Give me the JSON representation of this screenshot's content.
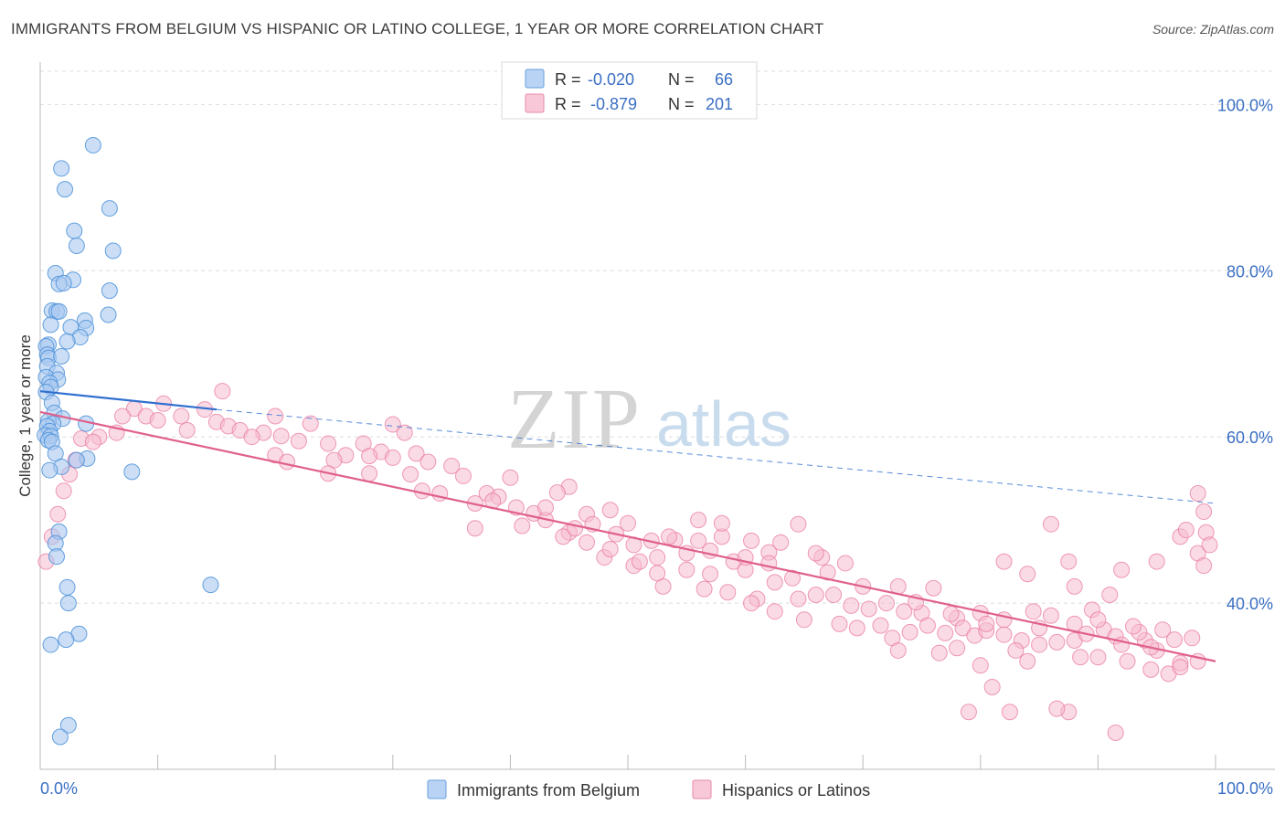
{
  "title": "IMMIGRANTS FROM BELGIUM VS HISPANIC OR LATINO COLLEGE, 1 YEAR OR MORE CORRELATION CHART",
  "source": "Source: ZipAtlas.com",
  "watermark": {
    "zip": "ZIP",
    "atlas": "atlas"
  },
  "colors": {
    "blue": "#4a90d9",
    "blue_fill": "#a8c8f0",
    "blue_line": "#2f6fcf",
    "pink": "#e97aa0",
    "pink_fill": "#f6bcd0",
    "pink_line": "#e0608c",
    "tick_label": "#3a6fc4",
    "grid": "#dddddd"
  },
  "legend": {
    "rows": [
      {
        "r_label": "R =",
        "r_value": "-0.020",
        "n_label": "N =",
        "n_value": "66"
      },
      {
        "r_label": "R =",
        "r_value": "-0.879",
        "n_label": "N =",
        "n_value": "201"
      }
    ]
  },
  "chart_data": {
    "type": "scatter",
    "ylabel": "College, 1 year or more",
    "xlabel": "",
    "xlim": [
      0,
      100
    ],
    "ylim": [
      20,
      104
    ],
    "x_tick_labels": [
      "0.0%",
      "100.0%"
    ],
    "y_ticks": [
      40,
      60,
      80,
      100
    ],
    "y_tick_labels": [
      "40.0%",
      "60.0%",
      "80.0%",
      "100.0%"
    ],
    "grid": true,
    "legend_position": "top-center",
    "series": [
      {
        "name": "Immigrants from Belgium",
        "r": -0.02,
        "n": 66,
        "trend": {
          "x0": 0,
          "y0": 65.5,
          "x1": 15,
          "y1": 63.3,
          "dash_x1": 100,
          "dash_y1": 52
        },
        "points": [
          [
            4.5,
            95.1
          ],
          [
            1.8,
            92.3
          ],
          [
            2.1,
            89.8
          ],
          [
            5.9,
            87.5
          ],
          [
            2.9,
            84.8
          ],
          [
            3.1,
            83.0
          ],
          [
            6.2,
            82.4
          ],
          [
            1.3,
            79.7
          ],
          [
            2.8,
            78.9
          ],
          [
            1.6,
            78.4
          ],
          [
            2.0,
            78.5
          ],
          [
            5.9,
            77.6
          ],
          [
            1.0,
            75.2
          ],
          [
            1.4,
            75.1
          ],
          [
            1.6,
            75.1
          ],
          [
            5.8,
            74.7
          ],
          [
            3.8,
            74.0
          ],
          [
            0.9,
            73.5
          ],
          [
            2.6,
            73.2
          ],
          [
            3.9,
            73.1
          ],
          [
            3.4,
            72.0
          ],
          [
            0.7,
            71.1
          ],
          [
            2.3,
            71.5
          ],
          [
            0.5,
            70.9
          ],
          [
            0.6,
            69.9
          ],
          [
            0.7,
            69.5
          ],
          [
            1.8,
            69.7
          ],
          [
            0.6,
            68.5
          ],
          [
            1.4,
            67.7
          ],
          [
            0.5,
            67.2
          ],
          [
            1.5,
            66.9
          ],
          [
            0.8,
            66.5
          ],
          [
            0.9,
            66.0
          ],
          [
            0.5,
            65.4
          ],
          [
            1.0,
            64.1
          ],
          [
            1.2,
            62.9
          ],
          [
            1.9,
            62.2
          ],
          [
            0.7,
            61.9
          ],
          [
            1.1,
            61.6
          ],
          [
            3.9,
            61.6
          ],
          [
            0.6,
            61.3
          ],
          [
            0.8,
            60.7
          ],
          [
            0.4,
            60.2
          ],
          [
            0.9,
            60.1
          ],
          [
            0.7,
            59.6
          ],
          [
            1.0,
            59.4
          ],
          [
            1.3,
            58.0
          ],
          [
            4.0,
            57.4
          ],
          [
            3.1,
            57.2
          ],
          [
            1.8,
            56.4
          ],
          [
            0.8,
            56.0
          ],
          [
            7.8,
            55.8
          ],
          [
            1.6,
            48.6
          ],
          [
            1.3,
            47.2
          ],
          [
            1.4,
            45.6
          ],
          [
            14.5,
            42.2
          ],
          [
            2.3,
            41.9
          ],
          [
            2.4,
            40.0
          ],
          [
            3.3,
            36.3
          ],
          [
            2.2,
            35.6
          ],
          [
            0.9,
            35.0
          ],
          [
            2.4,
            25.3
          ],
          [
            1.7,
            23.9
          ]
        ]
      },
      {
        "name": "Hispanics or Latinos",
        "r": -0.879,
        "n": 201,
        "trend": {
          "x0": 0,
          "y0": 63.0,
          "x1": 100,
          "y1": 33.0
        },
        "points": [
          [
            15.5,
            65.5
          ],
          [
            10.5,
            64.0
          ],
          [
            8.0,
            63.4
          ],
          [
            14.0,
            63.3
          ],
          [
            7.0,
            62.5
          ],
          [
            9.0,
            62.5
          ],
          [
            10.0,
            62.0
          ],
          [
            12.0,
            62.5
          ],
          [
            15.0,
            61.8
          ],
          [
            16.0,
            61.3
          ],
          [
            20.0,
            62.5
          ],
          [
            23.0,
            61.6
          ],
          [
            30.0,
            61.5
          ],
          [
            12.5,
            60.8
          ],
          [
            17.0,
            60.8
          ],
          [
            19.0,
            60.5
          ],
          [
            20.5,
            60.1
          ],
          [
            18.0,
            60.0
          ],
          [
            3.5,
            59.8
          ],
          [
            5.0,
            60.0
          ],
          [
            6.5,
            60.5
          ],
          [
            4.5,
            59.4
          ],
          [
            22.0,
            59.5
          ],
          [
            24.5,
            59.2
          ],
          [
            27.5,
            59.2
          ],
          [
            31.0,
            60.5
          ],
          [
            29.0,
            58.2
          ],
          [
            26.0,
            57.8
          ],
          [
            28.0,
            57.7
          ],
          [
            30.0,
            57.5
          ],
          [
            32.0,
            58.0
          ],
          [
            3.0,
            57.2
          ],
          [
            20.0,
            57.8
          ],
          [
            21.0,
            57.0
          ],
          [
            25.0,
            57.2
          ],
          [
            33.0,
            57.0
          ],
          [
            35.0,
            56.5
          ],
          [
            24.5,
            55.6
          ],
          [
            28.0,
            55.6
          ],
          [
            31.5,
            55.5
          ],
          [
            2.5,
            55.5
          ],
          [
            36.0,
            55.3
          ],
          [
            40.0,
            55.1
          ],
          [
            32.5,
            53.5
          ],
          [
            34.0,
            53.2
          ],
          [
            38.0,
            53.2
          ],
          [
            39.0,
            52.8
          ],
          [
            45.0,
            54.0
          ],
          [
            44.0,
            53.3
          ],
          [
            37.0,
            52.0
          ],
          [
            38.5,
            52.3
          ],
          [
            40.5,
            51.5
          ],
          [
            42.0,
            50.8
          ],
          [
            46.5,
            50.7
          ],
          [
            48.5,
            51.2
          ],
          [
            43.0,
            50.0
          ],
          [
            47.0,
            49.5
          ],
          [
            50.0,
            49.6
          ],
          [
            2.0,
            53.5
          ],
          [
            1.5,
            50.7
          ],
          [
            1.0,
            48.0
          ],
          [
            0.5,
            45.0
          ],
          [
            37.0,
            49.0
          ],
          [
            41.0,
            49.3
          ],
          [
            45.0,
            48.5
          ],
          [
            49.0,
            48.3
          ],
          [
            52.0,
            47.5
          ],
          [
            56.0,
            47.5
          ],
          [
            58.0,
            48.0
          ],
          [
            55.0,
            46.0
          ],
          [
            54.0,
            47.6
          ],
          [
            57.0,
            46.3
          ],
          [
            52.5,
            45.5
          ],
          [
            59.0,
            45.0
          ],
          [
            63.0,
            47.3
          ],
          [
            62.0,
            46.1
          ],
          [
            60.0,
            44.0
          ],
          [
            64.0,
            43.0
          ],
          [
            53.0,
            42.0
          ],
          [
            56.5,
            41.7
          ],
          [
            58.5,
            41.3
          ],
          [
            61.0,
            40.5
          ],
          [
            64.5,
            40.5
          ],
          [
            60.5,
            40.0
          ],
          [
            66.0,
            41.0
          ],
          [
            67.5,
            41.0
          ],
          [
            70.0,
            42.0
          ],
          [
            73.0,
            42.0
          ],
          [
            76.0,
            41.8
          ],
          [
            70.5,
            39.3
          ],
          [
            73.5,
            39.0
          ],
          [
            75.0,
            38.8
          ],
          [
            78.0,
            38.2
          ],
          [
            62.5,
            39.0
          ],
          [
            65.0,
            38.0
          ],
          [
            68.0,
            37.5
          ],
          [
            69.5,
            37.0
          ],
          [
            71.5,
            37.3
          ],
          [
            72.5,
            35.8
          ],
          [
            74.0,
            36.5
          ],
          [
            75.5,
            37.3
          ],
          [
            77.0,
            36.4
          ],
          [
            78.5,
            37.0
          ],
          [
            79.5,
            36.1
          ],
          [
            80.5,
            36.7
          ],
          [
            82.0,
            36.2
          ],
          [
            83.5,
            35.5
          ],
          [
            85.0,
            35.0
          ],
          [
            86.5,
            35.3
          ],
          [
            88.0,
            35.5
          ],
          [
            89.0,
            36.3
          ],
          [
            90.5,
            36.8
          ],
          [
            91.5,
            36.0
          ],
          [
            92.0,
            35.0
          ],
          [
            94.0,
            35.5
          ],
          [
            95.0,
            34.3
          ],
          [
            96.5,
            35.6
          ],
          [
            73.0,
            34.3
          ],
          [
            76.5,
            34.0
          ],
          [
            78.0,
            34.6
          ],
          [
            84.0,
            33.0
          ],
          [
            88.5,
            33.5
          ],
          [
            90.0,
            33.5
          ],
          [
            92.5,
            33.0
          ],
          [
            94.5,
            32.0
          ],
          [
            96.0,
            31.5
          ],
          [
            97.0,
            32.8
          ],
          [
            98.0,
            35.8
          ],
          [
            95.5,
            36.8
          ],
          [
            93.5,
            36.5
          ],
          [
            86.0,
            38.5
          ],
          [
            84.5,
            39.0
          ],
          [
            82.0,
            38.0
          ],
          [
            80.0,
            38.8
          ],
          [
            89.5,
            39.2
          ],
          [
            91.0,
            41.0
          ],
          [
            88.0,
            42.0
          ],
          [
            84.0,
            43.5
          ],
          [
            82.0,
            45.0
          ],
          [
            86.0,
            49.5
          ],
          [
            87.5,
            45.0
          ],
          [
            92.0,
            44.0
          ],
          [
            95.0,
            45.0
          ],
          [
            97.0,
            48.0
          ],
          [
            97.5,
            48.8
          ],
          [
            98.5,
            46.0
          ],
          [
            99.0,
            44.5
          ],
          [
            99.2,
            48.5
          ],
          [
            99.5,
            47.0
          ],
          [
            99.0,
            51.0
          ],
          [
            98.5,
            53.2
          ],
          [
            80.0,
            32.5
          ],
          [
            81.0,
            29.9
          ],
          [
            79.0,
            26.9
          ],
          [
            82.5,
            26.9
          ],
          [
            87.5,
            26.9
          ],
          [
            91.5,
            24.4
          ],
          [
            86.5,
            27.3
          ],
          [
            83.0,
            34.3
          ],
          [
            66.5,
            45.5
          ],
          [
            64.5,
            49.5
          ],
          [
            66.0,
            46.0
          ],
          [
            68.5,
            44.8
          ],
          [
            62.0,
            44.8
          ],
          [
            60.0,
            45.5
          ],
          [
            57.0,
            43.5
          ],
          [
            55.0,
            44.0
          ],
          [
            52.5,
            43.6
          ],
          [
            50.5,
            44.5
          ],
          [
            48.0,
            45.5
          ],
          [
            46.5,
            47.3
          ],
          [
            44.5,
            48.0
          ],
          [
            43.0,
            51.5
          ],
          [
            45.5,
            49.0
          ],
          [
            48.5,
            46.5
          ],
          [
            50.5,
            47.0
          ],
          [
            51.0,
            45.0
          ],
          [
            53.5,
            48.0
          ],
          [
            56.0,
            50.0
          ],
          [
            58.0,
            49.6
          ],
          [
            60.5,
            47.5
          ],
          [
            62.5,
            42.5
          ],
          [
            67.0,
            43.7
          ],
          [
            69.0,
            39.7
          ],
          [
            72.0,
            40.0
          ],
          [
            74.5,
            40.1
          ],
          [
            77.5,
            38.7
          ],
          [
            80.5,
            37.5
          ],
          [
            85.0,
            37.0
          ],
          [
            88.0,
            37.5
          ],
          [
            90.0,
            38.0
          ],
          [
            93.0,
            37.2
          ],
          [
            94.5,
            34.7
          ],
          [
            97.0,
            32.3
          ],
          [
            98.5,
            33.0
          ]
        ]
      }
    ]
  }
}
